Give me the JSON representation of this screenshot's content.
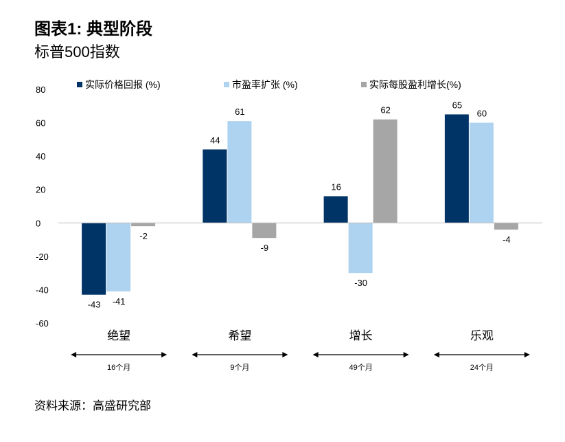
{
  "header": {
    "title": "图表1: 典型阶段",
    "subtitle": "标普500指数"
  },
  "footer": {
    "source": "资料来源：高盛研究部"
  },
  "chart_data": {
    "type": "bar",
    "categories": [
      "绝望",
      "希望",
      "增长",
      "乐观"
    ],
    "durations": [
      "16个月",
      "9个月",
      "49个月",
      "24个月"
    ],
    "series": [
      {
        "name": "实际价格回报 (%)",
        "color": "#003366",
        "values": [
          -43,
          44,
          16,
          65
        ]
      },
      {
        "name": "市盈率扩张 (%)",
        "color": "#aed3f0",
        "values": [
          -41,
          61,
          -30,
          60
        ]
      },
      {
        "name": "实际每股盈利增长(%)",
        "color": "#a6a6a6",
        "values": [
          -2,
          -9,
          62,
          -4
        ]
      }
    ],
    "ylim": [
      -60,
      80
    ],
    "yticks": [
      -60,
      -40,
      -20,
      0,
      20,
      40,
      60,
      80
    ],
    "legend": "top",
    "grid": false
  }
}
